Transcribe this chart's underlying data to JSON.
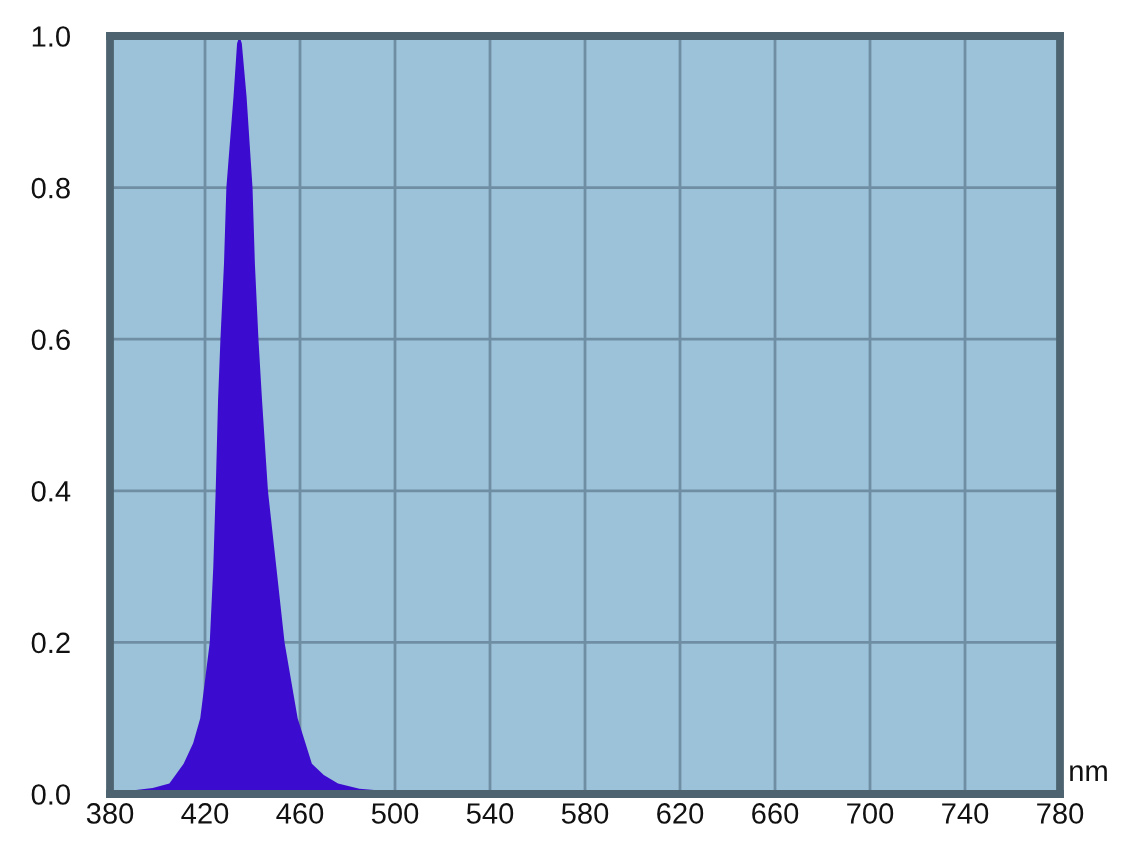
{
  "chart_data": {
    "type": "area",
    "xlabel": "nm",
    "color": "#3b0bd0",
    "x": [
      380,
      390,
      398,
      405,
      411,
      415,
      418,
      422,
      423.5,
      424.5,
      425.5,
      426.5,
      428,
      429,
      432,
      433.5,
      434.5,
      435.5,
      437.5,
      440,
      441,
      442.5,
      444,
      446.5,
      450,
      453.5,
      459,
      465,
      470,
      476,
      485,
      500,
      520,
      540,
      780
    ],
    "values": [
      0.004,
      0.005,
      0.008,
      0.014,
      0.04,
      0.067,
      0.1,
      0.2,
      0.3,
      0.4,
      0.52,
      0.6,
      0.7,
      0.8,
      0.92,
      0.99,
      1.0,
      0.99,
      0.92,
      0.8,
      0.7,
      0.6,
      0.52,
      0.4,
      0.3,
      0.2,
      0.1,
      0.04,
      0.025,
      0.014,
      0.007,
      0.003,
      0.001,
      0,
      0
    ],
    "xlim": [
      380,
      780
    ],
    "ylim": [
      0,
      1
    ],
    "xticks": [
      380,
      420,
      460,
      500,
      540,
      580,
      620,
      660,
      700,
      740,
      780
    ],
    "yticks": [
      {
        "value": 0,
        "label": "0.0"
      },
      {
        "value": 0.2,
        "label": "0.2"
      },
      {
        "value": 0.4,
        "label": "0.4"
      },
      {
        "value": 0.6,
        "label": "0.6"
      },
      {
        "value": 0.8,
        "label": "0.8"
      },
      {
        "value": 1,
        "label": "1.0"
      }
    ],
    "grid": true
  }
}
